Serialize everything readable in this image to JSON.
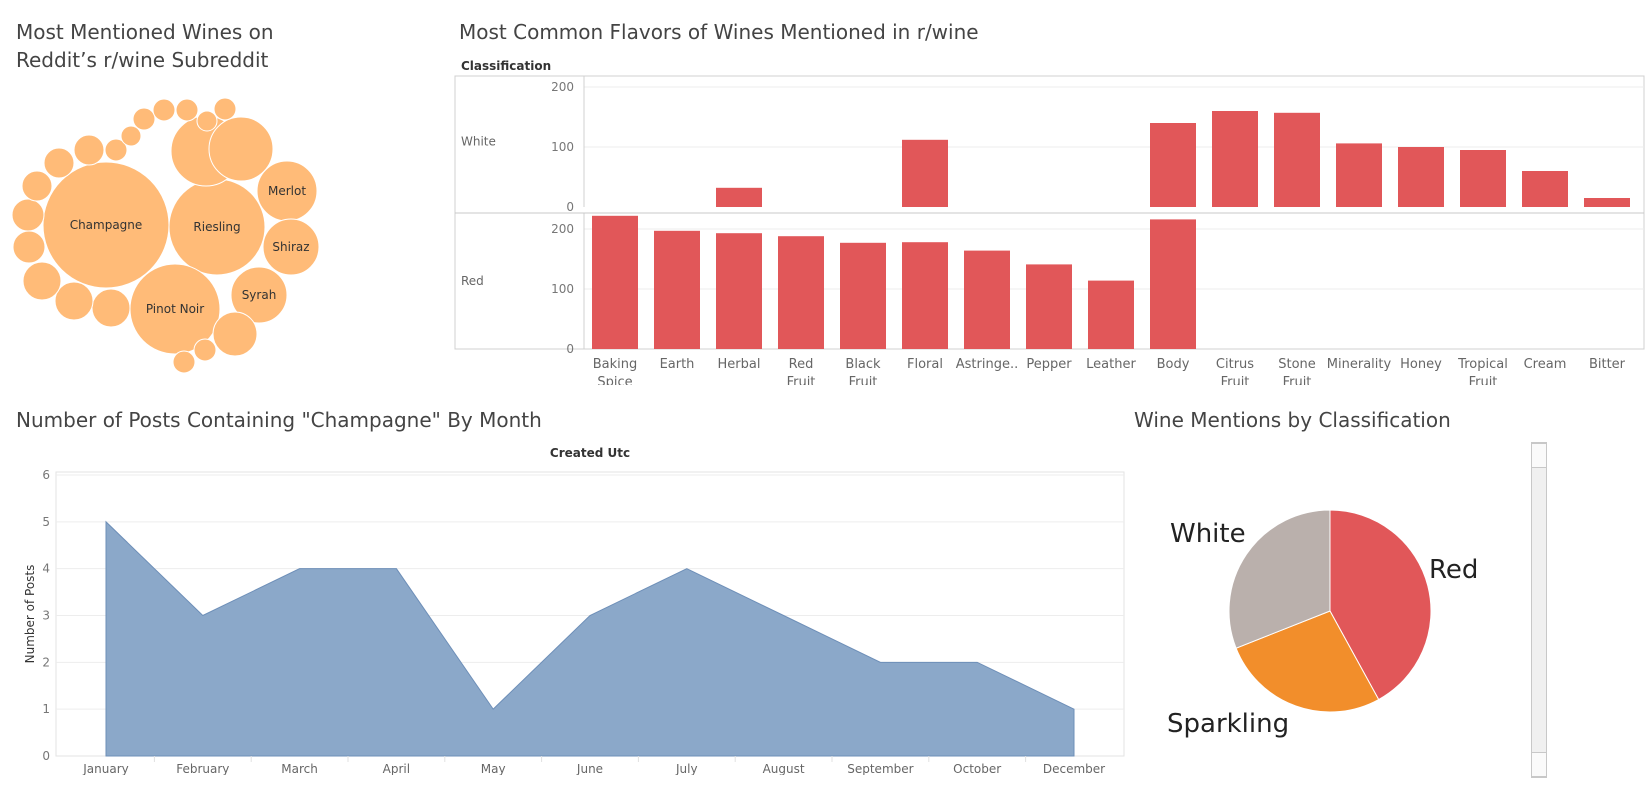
{
  "titles": {
    "bubble_line1": "Most Mentioned Wines on",
    "bubble_line2": "Reddit’s r/wine Subreddit",
    "flavor": "Most Common Flavors of Wines Mentioned in r/wine",
    "area": "Number of Posts Containing \"Champagne\" By Month",
    "pie": "Wine Mentions by Classification"
  },
  "colors": {
    "bubble": "#ffbb78",
    "bar": "#e15759",
    "area": "#8ba8c9",
    "area_line": "#6e8fb8",
    "pie_red": "#e15759",
    "pie_sparkling": "#f28e2b",
    "pie_white": "#bab0ac"
  },
  "chart_data": [
    {
      "type": "bubble",
      "labels": [
        "Champagne",
        "Riesling",
        "Pinot Noir",
        "Merlot",
        "Shiraz",
        "Syrah"
      ]
    },
    {
      "type": "bar",
      "header": "Classification",
      "categories": [
        "Baking Spice",
        "Earth",
        "Herbal",
        "Red Fruit",
        "Black Fruit",
        "Floral",
        "Astringe..",
        "Pepper",
        "Leather",
        "Body",
        "Citrus Fruit",
        "Stone Fruit",
        "Minerality",
        "Honey",
        "Tropical Fruit",
        "Cream",
        "Bitter"
      ],
      "yticks": [
        0,
        100,
        200
      ],
      "ylim": [
        0,
        230
      ],
      "series": [
        {
          "name": "White",
          "values": [
            0,
            0,
            32,
            0,
            0,
            112,
            0,
            0,
            0,
            140,
            160,
            157,
            106,
            100,
            95,
            60,
            15
          ]
        },
        {
          "name": "Red",
          "values": [
            222,
            197,
            193,
            188,
            177,
            178,
            164,
            141,
            114,
            216,
            0,
            0,
            0,
            0,
            0,
            0,
            0
          ]
        }
      ]
    },
    {
      "type": "area",
      "header": "Created Utc",
      "ylabel": "Number of Posts",
      "categories": [
        "January",
        "February",
        "March",
        "April",
        "May",
        "June",
        "July",
        "August",
        "September",
        "October",
        "December"
      ],
      "values": [
        5,
        3,
        4,
        4,
        1,
        3,
        4,
        3,
        2,
        2,
        1
      ],
      "yticks": [
        0,
        1,
        2,
        3,
        4,
        5,
        6
      ],
      "ylim": [
        0,
        6
      ]
    },
    {
      "type": "pie",
      "slices": [
        {
          "label": "Red",
          "value": 42
        },
        {
          "label": "Sparkling",
          "value": 27
        },
        {
          "label": "White",
          "value": 31
        }
      ]
    }
  ]
}
